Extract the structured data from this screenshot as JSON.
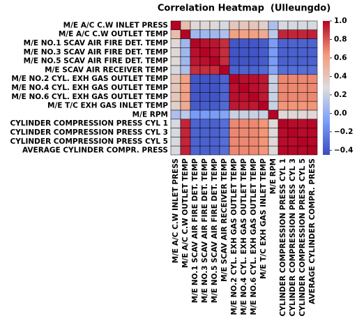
{
  "chart_data": {
    "type": "heatmap",
    "title": "Correlation Heatmap  (Ulleungdo)",
    "categories": [
      "M/E A/C C.W INLET PRESS",
      "M/E A/C C.W OUTLET TEMP",
      "M/E NO.1 SCAV AIR FIRE DET. TEMP",
      "M/E NO.3 SCAV AIR FIRE DET. TEMP",
      "M/E NO.5 SCAV AIR FIRE DET. TEMP",
      "M/E SCAV AIR RECEIVER TEMP",
      "M/E NO.2 CYL. EXH GAS OUTLET TEMP",
      "M/E NO.4 CYL. EXH GAS OUTLET TEMP",
      "M/E NO.6 CYL. EXH GAS OUTLET TEMP",
      "M/E T/C EXH GAS INLET TEMP",
      "M/E RPM",
      "CYLINDER COMPRESSION PRESS CYL 1",
      "CYLINDER COMPRESSION PRESS CYL 3",
      "CYLINDER COMPRESSION PRESS CYL 5",
      "AVERAGE CYLINDER COMPR. PRESS"
    ],
    "z": [
      [
        1,
        0.45,
        0.3,
        0.3,
        0.3,
        0.25,
        0.4,
        0.4,
        0.4,
        0.35,
        0.1,
        0.25,
        0.25,
        0.25,
        0.25
      ],
      [
        0.45,
        1,
        0.05,
        0.05,
        0.05,
        0.1,
        0.6,
        0.6,
        0.6,
        0.55,
        0.15,
        0.92,
        0.92,
        0.92,
        0.93
      ],
      [
        0.3,
        0.05,
        1,
        0.97,
        0.96,
        0.9,
        -0.4,
        -0.4,
        -0.4,
        -0.38,
        -0.1,
        -0.35,
        -0.35,
        -0.35,
        -0.35
      ],
      [
        0.3,
        0.05,
        0.97,
        1,
        0.97,
        0.9,
        -0.41,
        -0.41,
        -0.41,
        -0.38,
        -0.1,
        -0.36,
        -0.36,
        -0.36,
        -0.36
      ],
      [
        0.3,
        0.05,
        0.96,
        0.97,
        1,
        0.9,
        -0.41,
        -0.41,
        -0.41,
        -0.38,
        -0.1,
        -0.36,
        -0.36,
        -0.36,
        -0.36
      ],
      [
        0.25,
        0.1,
        0.9,
        0.9,
        0.9,
        1,
        -0.35,
        -0.35,
        -0.35,
        -0.32,
        -0.05,
        -0.3,
        -0.3,
        -0.3,
        -0.3
      ],
      [
        0.4,
        0.6,
        -0.4,
        -0.41,
        -0.41,
        -0.35,
        1,
        0.97,
        0.97,
        0.95,
        0.2,
        0.68,
        0.68,
        0.68,
        0.68
      ],
      [
        0.4,
        0.6,
        -0.4,
        -0.41,
        -0.41,
        -0.35,
        0.97,
        1,
        0.97,
        0.95,
        0.2,
        0.68,
        0.68,
        0.68,
        0.68
      ],
      [
        0.4,
        0.6,
        -0.4,
        -0.41,
        -0.41,
        -0.35,
        0.97,
        0.97,
        1,
        0.95,
        0.2,
        0.68,
        0.68,
        0.68,
        0.68
      ],
      [
        0.35,
        0.55,
        -0.38,
        -0.38,
        -0.38,
        -0.32,
        0.95,
        0.95,
        0.95,
        1,
        0.2,
        0.65,
        0.65,
        0.65,
        0.65
      ],
      [
        0.1,
        0.15,
        -0.1,
        -0.1,
        -0.1,
        -0.05,
        0.2,
        0.2,
        0.2,
        0.2,
        1,
        0.3,
        0.3,
        0.3,
        0.3
      ],
      [
        0.25,
        0.92,
        -0.35,
        -0.36,
        -0.36,
        -0.3,
        0.68,
        0.68,
        0.68,
        0.65,
        0.3,
        1,
        0.98,
        0.98,
        0.99
      ],
      [
        0.25,
        0.92,
        -0.35,
        -0.36,
        -0.36,
        -0.3,
        0.68,
        0.68,
        0.68,
        0.65,
        0.3,
        0.98,
        1,
        0.98,
        0.99
      ],
      [
        0.25,
        0.92,
        -0.35,
        -0.36,
        -0.36,
        -0.3,
        0.68,
        0.68,
        0.68,
        0.65,
        0.3,
        0.98,
        0.98,
        1,
        0.99
      ],
      [
        0.25,
        0.93,
        -0.35,
        -0.36,
        -0.36,
        -0.3,
        0.68,
        0.68,
        0.68,
        0.65,
        0.3,
        0.99,
        0.99,
        0.99,
        1
      ]
    ],
    "colormap": [
      "#3b4cc0",
      "#7b9ff9",
      "#dddddd",
      "#f49a7b",
      "#b40426"
    ],
    "clim": [
      -0.45,
      1.0
    ],
    "cticks": [
      {
        "value": 1.0,
        "label": "1.0"
      },
      0.8,
      0.6,
      0.4,
      0.2,
      {
        "value": 0,
        "label": "0.0"
      },
      {
        "value": -0.2,
        "label": "−0.2"
      },
      {
        "value": -0.4,
        "label": "−0.4"
      }
    ]
  }
}
